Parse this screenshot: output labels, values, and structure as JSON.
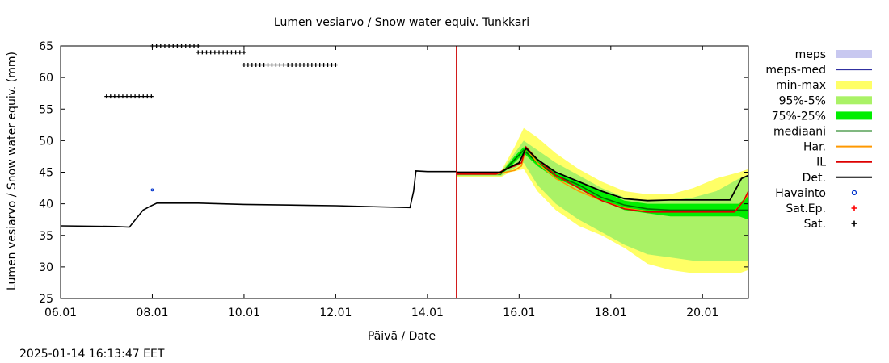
{
  "timestamp": "2025-01-14 16:13:47 EET",
  "chart_data": {
    "type": "line",
    "title": "Lumen vesiarvo / Snow water equiv.  Tunkkari",
    "xlabel": "Päivä / Date",
    "ylabel": "Lumen vesiarvo / Snow water equiv. (mm)",
    "ylim": [
      25,
      65
    ],
    "xlim": [
      6.0,
      21.0
    ],
    "x_unit": "day of January 2025",
    "x_ticks": [
      {
        "value": 6,
        "label": "06.01"
      },
      {
        "value": 8,
        "label": "08.01"
      },
      {
        "value": 10,
        "label": "10.01"
      },
      {
        "value": 12,
        "label": "12.01"
      },
      {
        "value": 14,
        "label": "14.01"
      },
      {
        "value": 16,
        "label": "16.01"
      },
      {
        "value": 18,
        "label": "18.01"
      },
      {
        "value": 20,
        "label": "20.01"
      }
    ],
    "y_ticks": [
      25,
      30,
      35,
      40,
      45,
      50,
      55,
      60,
      65
    ],
    "now_marker": 14.63,
    "legend": [
      {
        "label": "meps",
        "color": "#c8c8f0",
        "kind": "box"
      },
      {
        "label": "meps-med",
        "color": "#3030a0",
        "kind": "line"
      },
      {
        "label": "min-max",
        "color": "#ffff66",
        "kind": "box"
      },
      {
        "label": "95%-5%",
        "color": "#aaf266",
        "kind": "box"
      },
      {
        "label": "75%-25%",
        "color": "#00ee00",
        "kind": "box"
      },
      {
        "label": "mediaani",
        "color": "#007000",
        "kind": "line"
      },
      {
        "label": "Har.",
        "color": "#ff9900",
        "kind": "line"
      },
      {
        "label": "IL",
        "color": "#dd0000",
        "kind": "line"
      },
      {
        "label": "Det.",
        "color": "#000000",
        "kind": "line"
      },
      {
        "label": "Havainto",
        "color": "#0033cc",
        "kind": "circle"
      },
      {
        "label": "Sat.Ep.",
        "color": "#ff0000",
        "kind": "plus"
      },
      {
        "label": "Sat.",
        "color": "#000000",
        "kind": "plus"
      }
    ],
    "series": {
      "det_history": {
        "x": [
          6.0,
          7.2,
          7.5,
          7.8,
          7.95,
          8.1,
          9.0,
          10.0,
          11.0,
          12.0,
          13.0,
          13.62,
          13.7,
          13.75,
          14.0,
          14.63
        ],
        "y": [
          36.5,
          36.4,
          36.3,
          39.0,
          39.6,
          40.1,
          40.1,
          39.9,
          39.8,
          39.7,
          39.5,
          39.4,
          42.0,
          45.2,
          45.1,
          45.1
        ]
      },
      "minmax_upper": {
        "x": [
          14.63,
          15.6,
          15.9,
          16.1,
          16.4,
          16.8,
          17.3,
          17.8,
          18.3,
          18.8,
          19.3,
          19.8,
          20.3,
          20.8,
          21.0
        ],
        "y": [
          45.1,
          45.1,
          49.0,
          52.0,
          50.5,
          48.0,
          45.5,
          43.5,
          42.0,
          41.5,
          41.5,
          42.5,
          44.0,
          45.0,
          45.5
        ]
      },
      "minmax_lower": {
        "x": [
          14.63,
          15.6,
          15.8,
          16.1,
          16.4,
          16.8,
          17.3,
          17.8,
          18.3,
          18.8,
          19.3,
          19.8,
          20.3,
          20.8,
          21.0
        ],
        "y": [
          44.2,
          44.2,
          45.0,
          45.5,
          42.0,
          39.0,
          36.5,
          35.0,
          33.0,
          30.5,
          29.5,
          29.0,
          29.0,
          29.0,
          29.5
        ]
      },
      "p95_upper": {
        "x": [
          14.63,
          15.6,
          15.9,
          16.1,
          16.4,
          16.8,
          17.3,
          17.8,
          18.3,
          18.8,
          19.3,
          19.8,
          20.3,
          20.8,
          21.0
        ],
        "y": [
          45.0,
          45.0,
          48.0,
          50.0,
          48.5,
          46.5,
          44.5,
          42.5,
          41.0,
          40.5,
          40.5,
          41.0,
          42.0,
          44.0,
          44.5
        ]
      },
      "p95_lower": {
        "x": [
          14.63,
          15.6,
          15.8,
          16.1,
          16.4,
          16.8,
          17.3,
          17.8,
          18.3,
          18.8,
          19.3,
          19.8,
          20.3,
          20.8,
          21.0
        ],
        "y": [
          44.4,
          44.4,
          45.2,
          46.5,
          43.0,
          40.0,
          37.5,
          35.5,
          33.5,
          32.0,
          31.5,
          31.0,
          31.0,
          31.0,
          31.0
        ]
      },
      "p75_upper": {
        "x": [
          14.63,
          15.6,
          15.9,
          16.1,
          16.4,
          16.8,
          17.3,
          17.8,
          18.3,
          18.8,
          19.3,
          19.8,
          20.3,
          20.8,
          21.0
        ],
        "y": [
          44.8,
          44.8,
          47.5,
          49.0,
          47.0,
          45.0,
          43.5,
          42.0,
          40.5,
          40.0,
          40.0,
          40.0,
          40.0,
          40.0,
          41.5
        ]
      },
      "p75_lower": {
        "x": [
          14.63,
          15.6,
          15.8,
          16.1,
          16.4,
          16.8,
          17.3,
          17.8,
          18.3,
          18.8,
          19.3,
          19.8,
          20.3,
          20.8,
          21.0
        ],
        "y": [
          44.6,
          44.6,
          45.8,
          48.0,
          46.0,
          44.0,
          42.5,
          40.5,
          39.0,
          38.5,
          38.0,
          38.0,
          38.0,
          38.0,
          37.5
        ]
      },
      "mediaani": {
        "x": [
          14.63,
          15.6,
          15.9,
          16.1,
          16.4,
          16.8,
          17.3,
          17.8,
          18.3,
          18.8,
          19.3,
          19.8,
          20.3,
          20.8,
          21.0
        ],
        "y": [
          44.7,
          44.7,
          47.0,
          48.5,
          46.5,
          44.5,
          43.0,
          41.0,
          39.8,
          39.2,
          39.0,
          39.0,
          39.0,
          39.0,
          39.0
        ]
      },
      "har": {
        "x": [
          14.63,
          15.5,
          15.7,
          15.9,
          16.05,
          16.15,
          16.4,
          16.8,
          17.3,
          17.8,
          18.3,
          18.8,
          19.3,
          19.8,
          20.3,
          20.7,
          20.9,
          21.0
        ],
        "y": [
          44.7,
          44.7,
          45.0,
          45.3,
          46.0,
          48.8,
          46.5,
          44.0,
          42.0,
          40.5,
          39.3,
          38.8,
          38.8,
          38.8,
          38.8,
          38.8,
          40.5,
          41.5
        ]
      },
      "il": {
        "x": [
          14.63,
          15.5,
          15.7,
          15.9,
          16.05,
          16.15,
          16.4,
          16.8,
          17.3,
          17.8,
          18.3,
          18.8,
          19.3,
          19.8,
          20.3,
          20.7,
          20.9,
          21.0
        ],
        "y": [
          44.7,
          44.7,
          45.5,
          46.0,
          46.5,
          49.0,
          47.0,
          44.5,
          42.5,
          40.5,
          39.2,
          38.7,
          38.7,
          38.7,
          38.7,
          38.7,
          40.5,
          42.0
        ]
      },
      "det_forecast": {
        "x": [
          14.63,
          15.6,
          15.8,
          16.0,
          16.15,
          16.4,
          16.8,
          17.3,
          17.8,
          18.3,
          18.8,
          19.3,
          19.8,
          20.3,
          20.6,
          20.85,
          21.0
        ],
        "y": [
          45.0,
          45.0,
          45.8,
          46.5,
          48.8,
          47.0,
          45.0,
          43.5,
          42.0,
          40.8,
          40.5,
          40.6,
          40.6,
          40.6,
          40.6,
          44.0,
          44.5
        ]
      },
      "sat": [
        {
          "x0": 7.0,
          "x1": 7.98,
          "y": 57
        },
        {
          "x0": 8.0,
          "x1": 9.0,
          "y": 65
        },
        {
          "x0": 9.0,
          "x1": 10.0,
          "y": 64
        },
        {
          "x0": 10.0,
          "x1": 12.0,
          "y": 62
        }
      ],
      "havainto": [
        {
          "x": 8.0,
          "y": 42.2
        }
      ]
    }
  }
}
